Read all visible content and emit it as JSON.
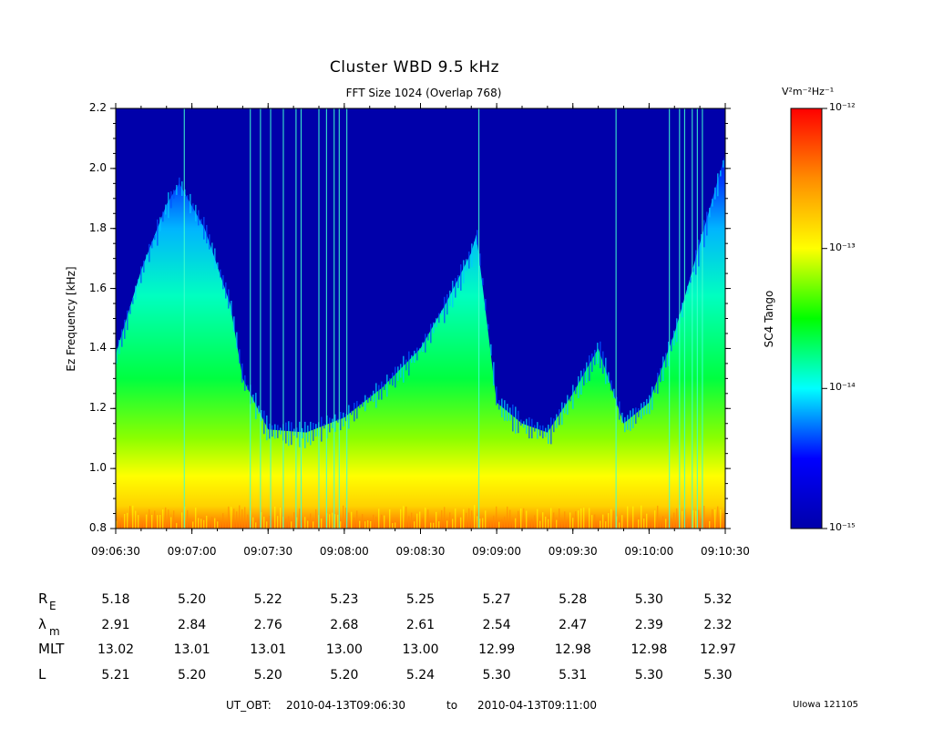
{
  "chart_data": {
    "type": "heatmap",
    "title": "Cluster WBD 9.5 kHz",
    "subtitle": "FFT Size 1024 (Overlap    768)",
    "ylabel": "Ez Frequency [kHz]",
    "ylim": [
      0.8,
      2.2
    ],
    "y_ticks": [
      "0.8",
      "1.0",
      "1.2",
      "1.4",
      "1.6",
      "1.8",
      "2.0",
      "2.2"
    ],
    "x_ticks": [
      "09:06:30",
      "09:07:00",
      "09:07:30",
      "09:08:00",
      "09:08:30",
      "09:09:00",
      "09:09:30",
      "09:10:00",
      "09:10:30"
    ],
    "xlim": [
      "09:06:30",
      "09:10:30"
    ],
    "emission_upper_edge": {
      "description_units": "kHz",
      "time": [
        "09:06:30",
        "09:06:40",
        "09:06:50",
        "09:06:55",
        "09:07:05",
        "09:07:15",
        "09:07:20",
        "09:07:30",
        "09:07:45",
        "09:08:00",
        "09:08:15",
        "09:08:30",
        "09:08:40",
        "09:08:50",
        "09:08:52",
        "09:09:00",
        "09:09:10",
        "09:09:20",
        "09:09:30",
        "09:09:40",
        "09:09:50",
        "09:10:00",
        "09:10:10",
        "09:10:20",
        "09:10:30"
      ],
      "freq": [
        1.38,
        1.66,
        1.88,
        1.95,
        1.8,
        1.55,
        1.3,
        1.13,
        1.12,
        1.17,
        1.27,
        1.4,
        1.55,
        1.72,
        1.78,
        1.22,
        1.15,
        1.12,
        1.25,
        1.4,
        1.15,
        1.22,
        1.45,
        1.75,
        2.05
      ]
    },
    "colorbar": {
      "label": "SC4 Tango",
      "units": "V²m⁻²Hz⁻¹",
      "scale": "log",
      "range": [
        1e-15,
        1e-12
      ],
      "tick_labels": [
        "10⁻¹²",
        "10⁻¹³",
        "10⁻¹⁴",
        "10⁻¹⁵"
      ],
      "colors": [
        "#0000aa",
        "#0000ff",
        "#00ffff",
        "#00ff00",
        "#ffff00",
        "#ff8c00",
        "#ff0000"
      ]
    },
    "background_color": "#0000aa"
  },
  "table": {
    "rows": [
      {
        "label": "R",
        "sub": "E",
        "values": [
          "5.18",
          "5.20",
          "5.22",
          "5.23",
          "5.25",
          "5.27",
          "5.28",
          "5.30",
          "5.32"
        ]
      },
      {
        "label": "λ",
        "sub": "m",
        "values": [
          "2.91",
          "2.84",
          "2.76",
          "2.68",
          "2.61",
          "2.54",
          "2.47",
          "2.39",
          "2.32"
        ]
      },
      {
        "label": "MLT",
        "sub": "",
        "values": [
          "13.02",
          "13.01",
          "13.01",
          "13.00",
          "13.00",
          "12.99",
          "12.98",
          "12.98",
          "12.97"
        ]
      },
      {
        "label": "L",
        "sub": "",
        "values": [
          "5.21",
          "5.20",
          "5.20",
          "5.20",
          "5.24",
          "5.30",
          "5.31",
          "5.30",
          "5.30"
        ]
      }
    ]
  },
  "footer": {
    "ut_label": "UT_OBT:",
    "start": "2010-04-13T09:06:30",
    "to": "to",
    "end": "2010-04-13T09:11:00"
  },
  "credit": "UIowa 121105"
}
